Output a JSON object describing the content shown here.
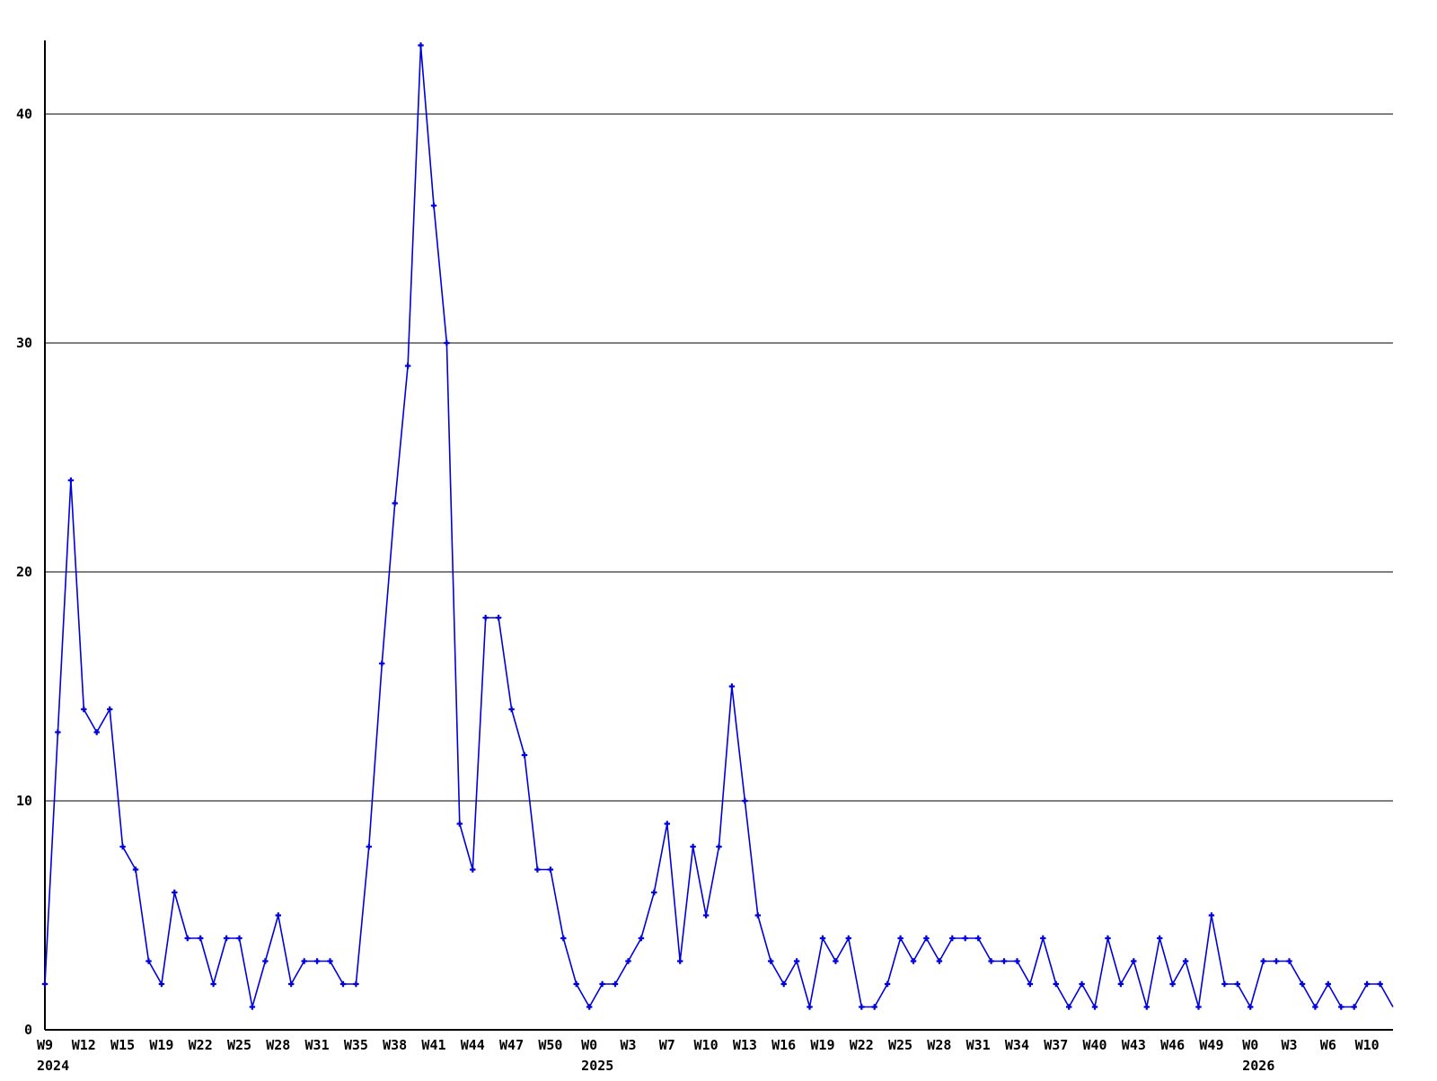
{
  "page": {
    "background": "#ffffff",
    "title": ""
  },
  "chart_data": {
    "type": "line",
    "title": "",
    "subtitle": "",
    "xlabel": "",
    "ylabel": "",
    "x_unit": "ISO week",
    "legend": "none",
    "grid": "horizontal-only",
    "marker": "plus",
    "ylim": [
      0,
      43.5
    ],
    "gridline_values": [
      10,
      20,
      30,
      40
    ],
    "y_tick_labels": [
      "0",
      "10",
      "20",
      "30",
      "40"
    ],
    "tick_every": 3,
    "x_tick_labels": [
      "W9",
      "W12",
      "W15",
      "W19",
      "W22",
      "W25",
      "W28",
      "W31",
      "W35",
      "W38",
      "W41",
      "W44",
      "W47",
      "W50",
      "W0",
      "W3",
      "W7",
      "W10",
      "W13",
      "W16",
      "W19",
      "W22",
      "W25",
      "W28",
      "W31",
      "W34",
      "W37",
      "W40",
      "W43",
      "W46",
      "W49",
      "W0",
      "W3",
      "W6",
      "W10"
    ],
    "year_labels": [
      {
        "tick_index": 0,
        "text": "2024"
      },
      {
        "tick_index": 14,
        "text": "2025"
      },
      {
        "tick_index": 31,
        "text": "2026"
      }
    ],
    "values": [
      2,
      13,
      24,
      14,
      13,
      14,
      8,
      7,
      3,
      2,
      6,
      4,
      4,
      2,
      4,
      4,
      1,
      3,
      5,
      2,
      3,
      3,
      3,
      2,
      2,
      8,
      16,
      23,
      29,
      43,
      36,
      30,
      9,
      7,
      18,
      18,
      14,
      12,
      7,
      7,
      4,
      2,
      1,
      2,
      2,
      3,
      4,
      6,
      9,
      3,
      8,
      5,
      8,
      15,
      10,
      5,
      3,
      2,
      3,
      1,
      4,
      3,
      4,
      1,
      1,
      2,
      4,
      3,
      4,
      3,
      4,
      4,
      4,
      3,
      3,
      3,
      2,
      4,
      2,
      1,
      2,
      1,
      4,
      2,
      3,
      1,
      4,
      2,
      3,
      1,
      5,
      2,
      2,
      1,
      3,
      3,
      3,
      2,
      1,
      2,
      1,
      1,
      2,
      2,
      1
    ],
    "colors": {
      "line": "#0000dd",
      "marker": "#0000dd",
      "axis": "#000000",
      "grid": "#000000",
      "text": "#000000",
      "background": "#ffffff"
    }
  }
}
